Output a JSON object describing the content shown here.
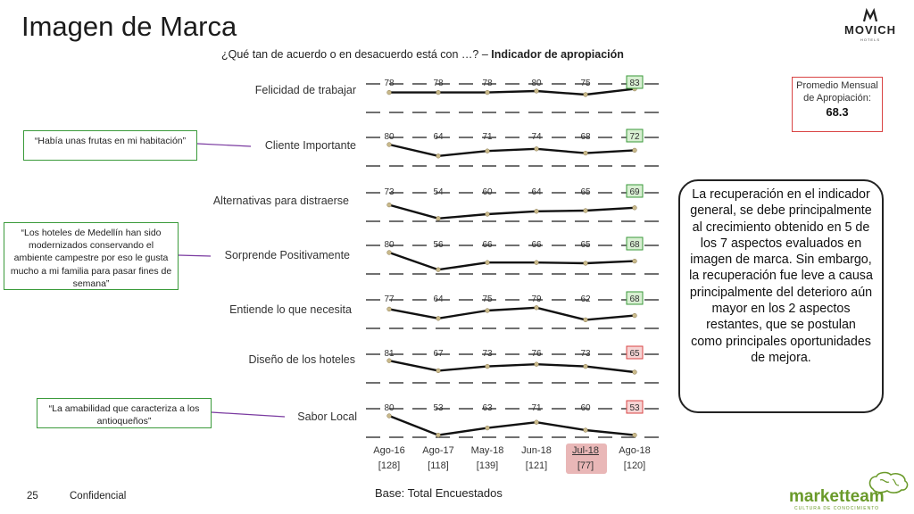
{
  "header": {
    "title": "Imagen de Marca",
    "question_prefix": "¿Qué tan de acuerdo o en desacuerdo está con …? – ",
    "question_bold": "Indicador de apropiación"
  },
  "brand": {
    "name": "MOVICH",
    "sub": "HOTELS"
  },
  "chart_data": {
    "type": "line",
    "x": [
      "Ago-16",
      "Ago-17",
      "May-18",
      "Jun-18",
      "Jul-18",
      "Ago-18"
    ],
    "x_bases": [
      "[128]",
      "[118]",
      "[139]",
      "[121]",
      "[77]",
      "[120]"
    ],
    "highlighted_x": "Jul-18",
    "series": [
      {
        "name": "Felicidad de trabajar",
        "values": [
          78,
          78,
          78,
          80,
          75,
          83
        ],
        "last_status": "up"
      },
      {
        "name": "Cliente Importante",
        "values": [
          80,
          64,
          71,
          74,
          68,
          72
        ],
        "last_status": "up"
      },
      {
        "name": "Alternativas para distraerse",
        "values": [
          73,
          54,
          60,
          64,
          65,
          69
        ],
        "last_status": "up"
      },
      {
        "name": "Sorprende Positivamente",
        "values": [
          80,
          56,
          66,
          66,
          65,
          68
        ],
        "last_status": "up"
      },
      {
        "name": "Entiende lo que necesita",
        "values": [
          77,
          64,
          75,
          79,
          62,
          68
        ],
        "last_status": "up"
      },
      {
        "name": "Diseño de los hoteles",
        "values": [
          81,
          67,
          73,
          76,
          73,
          65
        ],
        "last_status": "down"
      },
      {
        "name": "Sabor Local",
        "values": [
          80,
          53,
          63,
          71,
          60,
          53
        ],
        "last_status": "down"
      }
    ],
    "colors": {
      "line": "#111111",
      "marker": "#c9b98a",
      "up_border": "#3a9a3a",
      "up_fill": "#d8efd2",
      "down_border": "#d94444",
      "down_fill": "#f6d4d4",
      "grid": "#1a1a1a"
    }
  },
  "quotes": [
    {
      "text": "“Había unas frutas en mi habitación”",
      "series": "Cliente Importante"
    },
    {
      "text": "“Los hoteles de Medellín han sido modernizados conservando el ambiente campestre por eso le gusta mucho a mi familia para pasar fines de semana”",
      "series": "Sorprende Positivamente"
    },
    {
      "text": "“La amabilidad que caracteriza a los antioqueños”",
      "series": "Sabor Local"
    }
  ],
  "average_box": {
    "label": "Promedio Mensual de Apropiación:",
    "value": "68.3"
  },
  "summary": "La recuperación en el indicador general, se debe principalmente al crecimiento obtenido en 5 de los 7 aspectos evaluados en imagen de marca. Sin embargo, la recuperación fue leve a causa principalmente del deterioro aún mayor en los 2 aspectos restantes, que se postulan como principales oportunidades de mejora.",
  "footer": {
    "base": "Base: Total Encuestados",
    "page_number": "25",
    "confidential": "Confidencial",
    "company_name": "marketteam",
    "company_tagline": "CULTURA DE CONOCIMIENTO"
  }
}
